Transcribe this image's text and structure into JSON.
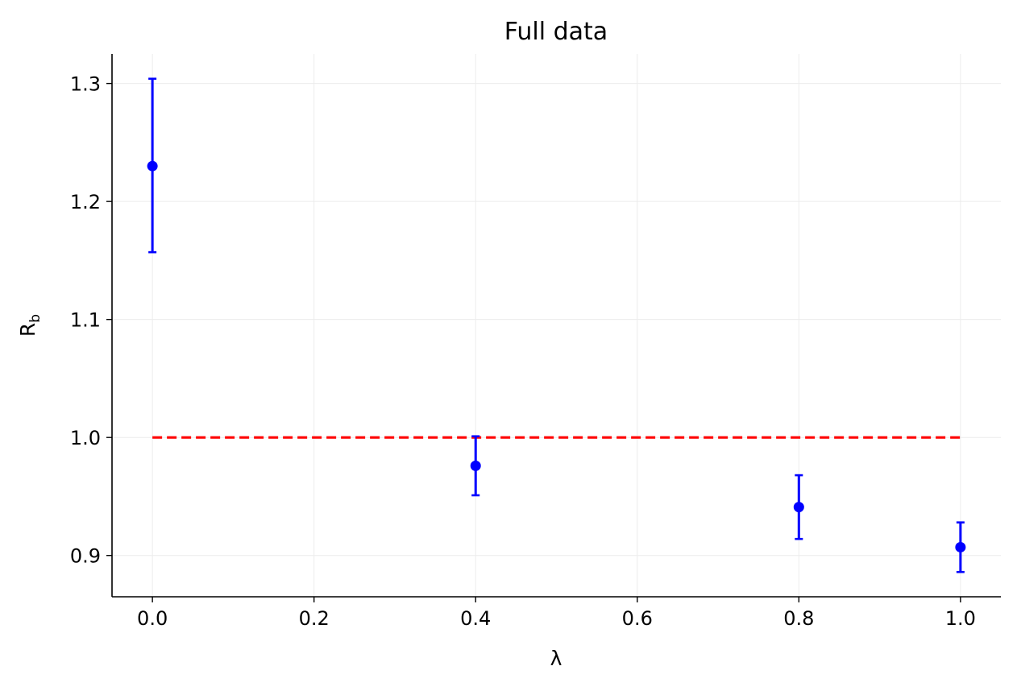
{
  "chart_data": {
    "type": "scatter",
    "title": "Full data",
    "xlabel": "λ",
    "ylabel_main": "R",
    "ylabel_sub": "b",
    "xlim": [
      -0.05,
      1.05
    ],
    "ylim": [
      0.865,
      1.325
    ],
    "xticks": [
      0.0,
      0.2,
      0.4,
      0.6,
      0.8,
      1.0
    ],
    "xtick_labels": [
      "0.0",
      "0.2",
      "0.4",
      "0.6",
      "0.8",
      "1.0"
    ],
    "yticks": [
      0.9,
      1.0,
      1.1,
      1.2,
      1.3
    ],
    "ytick_labels": [
      "0.9",
      "1.0",
      "1.1",
      "1.2",
      "1.3"
    ],
    "grid": true,
    "series": [
      {
        "x": [
          0.0,
          0.4,
          0.8,
          1.0
        ],
        "y": [
          1.23,
          0.976,
          0.941,
          0.907
        ],
        "yerr_low": [
          1.157,
          0.951,
          0.914,
          0.886
        ],
        "yerr_high": [
          1.304,
          1.001,
          0.968,
          0.928
        ],
        "color": "#0000ff"
      }
    ],
    "reference_line": {
      "x": [
        0.0,
        1.0
      ],
      "y": 1.0,
      "style": "dashed",
      "color": "#ff0000"
    }
  }
}
